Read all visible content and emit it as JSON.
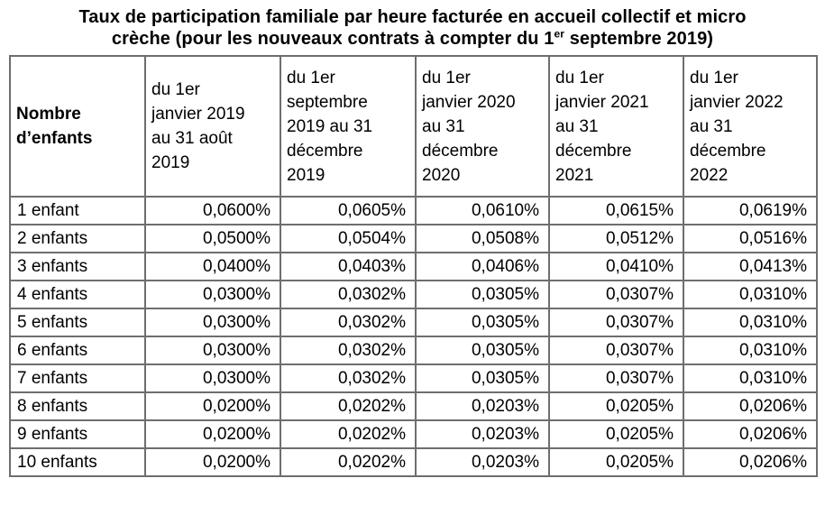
{
  "title": {
    "line1": "Taux de participation familiale par heure facturée en accueil collectif et micro",
    "line2_before": "crèche (pour les nouveaux contrats à compter du 1",
    "line2_sup": "er",
    "line2_after": " septembre 2019)"
  },
  "table": {
    "columns": [
      "Nombre\nd’enfants",
      "du 1er\njanvier 2019\nau 31 août\n2019",
      "du 1er\nseptembre\n2019 au 31\ndécembre\n2019",
      "du 1er\njanvier 2020\nau 31\ndécembre\n2020",
      "du 1er\njanvier 2021\nau 31\ndécembre\n2021",
      "du 1er\njanvier 2022\nau 31\ndécembre\n2022"
    ],
    "rows": [
      {
        "label": "1 enfant",
        "values": [
          "0,0600%",
          "0,0605%",
          "0,0610%",
          "0,0615%",
          "0,0619%"
        ]
      },
      {
        "label": "2 enfants",
        "values": [
          "0,0500%",
          "0,0504%",
          "0,0508%",
          "0,0512%",
          "0,0516%"
        ]
      },
      {
        "label": "3 enfants",
        "values": [
          "0,0400%",
          "0,0403%",
          "0,0406%",
          "0,0410%",
          "0,0413%"
        ]
      },
      {
        "label": "4 enfants",
        "values": [
          "0,0300%",
          "0,0302%",
          "0,0305%",
          "0,0307%",
          "0,0310%"
        ]
      },
      {
        "label": "5 enfants",
        "values": [
          "0,0300%",
          "0,0302%",
          "0,0305%",
          "0,0307%",
          "0,0310%"
        ]
      },
      {
        "label": "6 enfants",
        "values": [
          "0,0300%",
          "0,0302%",
          "0,0305%",
          "0,0307%",
          "0,0310%"
        ]
      },
      {
        "label": "7 enfants",
        "values": [
          "0,0300%",
          "0,0302%",
          "0,0305%",
          "0,0307%",
          "0,0310%"
        ]
      },
      {
        "label": "8 enfants",
        "values": [
          "0,0200%",
          "0,0202%",
          "0,0203%",
          "0,0205%",
          "0,0206%"
        ]
      },
      {
        "label": "9 enfants",
        "values": [
          "0,0200%",
          "0,0202%",
          "0,0203%",
          "0,0205%",
          "0,0206%"
        ]
      },
      {
        "label": "10 enfants",
        "values": [
          "0,0200%",
          "0,0202%",
          "0,0203%",
          "0,0205%",
          "0,0206%"
        ]
      }
    ]
  },
  "colors": {
    "border": "#6e6e6e",
    "text": "#000000",
    "background": "#ffffff"
  }
}
